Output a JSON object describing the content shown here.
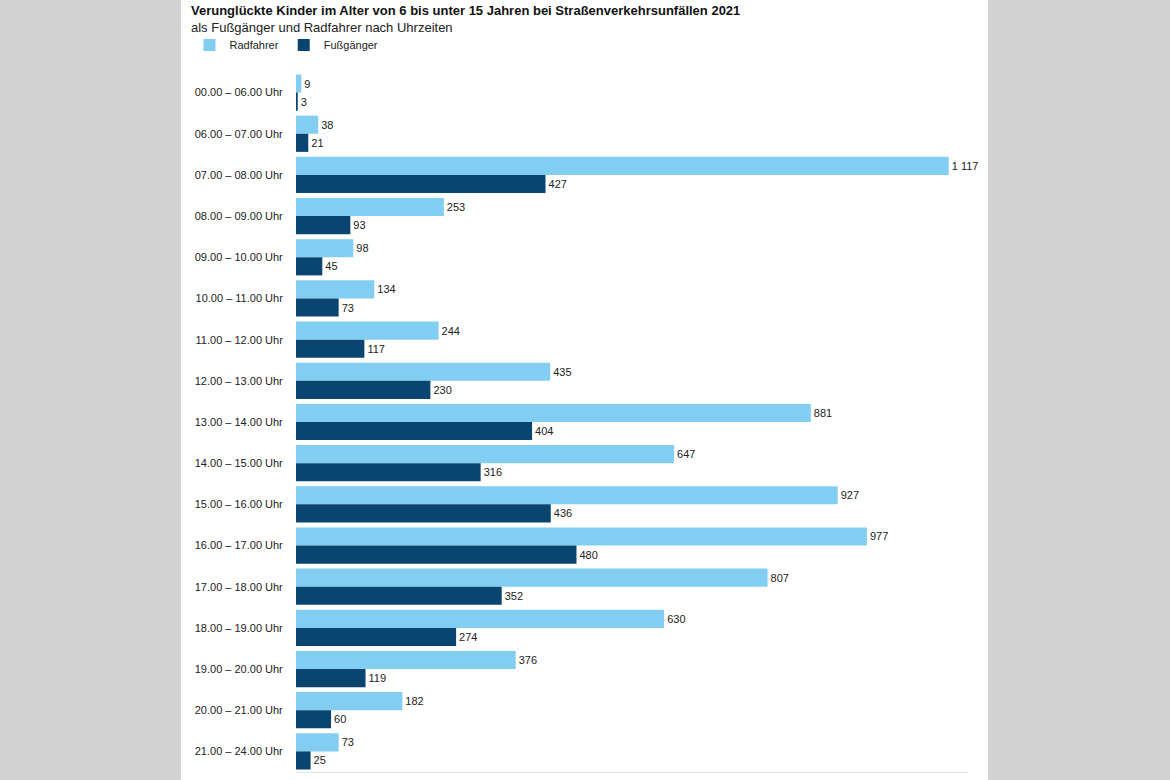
{
  "chart_data": {
    "type": "bar",
    "orientation": "horizontal",
    "title": "Verunglückte Kinder im Alter von 6 bis unter 15 Jahren bei Straßenverkehrsunfällen 2021",
    "subtitle": "als Fußgänger und Radfahrer nach Uhrzeiten",
    "categories": [
      "00.00 – 06.00 Uhr",
      "06.00 – 07.00 Uhr",
      "07.00 – 08.00 Uhr",
      "08.00 – 09.00 Uhr",
      "09.00 – 10.00 Uhr",
      "10.00 – 11.00 Uhr",
      "11.00 – 12.00 Uhr",
      "12.00 – 13.00 Uhr",
      "13.00 – 14.00 Uhr",
      "14.00 – 15.00 Uhr",
      "15.00 – 16.00 Uhr",
      "16.00 – 17.00 Uhr",
      "17.00 – 18.00 Uhr",
      "18.00 – 19.00 Uhr",
      "19.00 – 20.00 Uhr",
      "20.00 – 21.00 Uhr",
      "21.00 – 24.00 Uhr"
    ],
    "series": [
      {
        "name": "Radfahrer",
        "color": "#82cef2",
        "values": [
          9,
          38,
          1117,
          253,
          98,
          134,
          244,
          435,
          881,
          647,
          927,
          977,
          807,
          630,
          376,
          182,
          73
        ],
        "value_labels": [
          "9",
          "38",
          "1 117",
          "253",
          "98",
          "134",
          "244",
          "435",
          "881",
          "647",
          "927",
          "977",
          "807",
          "630",
          "376",
          "182",
          "73"
        ]
      },
      {
        "name": "Fußgänger",
        "color": "#0a4571",
        "values": [
          3,
          21,
          427,
          93,
          45,
          73,
          117,
          230,
          404,
          316,
          436,
          480,
          352,
          274,
          119,
          60,
          25
        ],
        "value_labels": [
          "3",
          "21",
          "427",
          "93",
          "45",
          "73",
          "117",
          "230",
          "404",
          "316",
          "436",
          "480",
          "352",
          "274",
          "119",
          "60",
          "25"
        ]
      }
    ],
    "xlim": [
      0,
      1150
    ],
    "xticks": [],
    "tick_labels": "y",
    "data_labels": true,
    "grid": false,
    "legend": "top left"
  }
}
